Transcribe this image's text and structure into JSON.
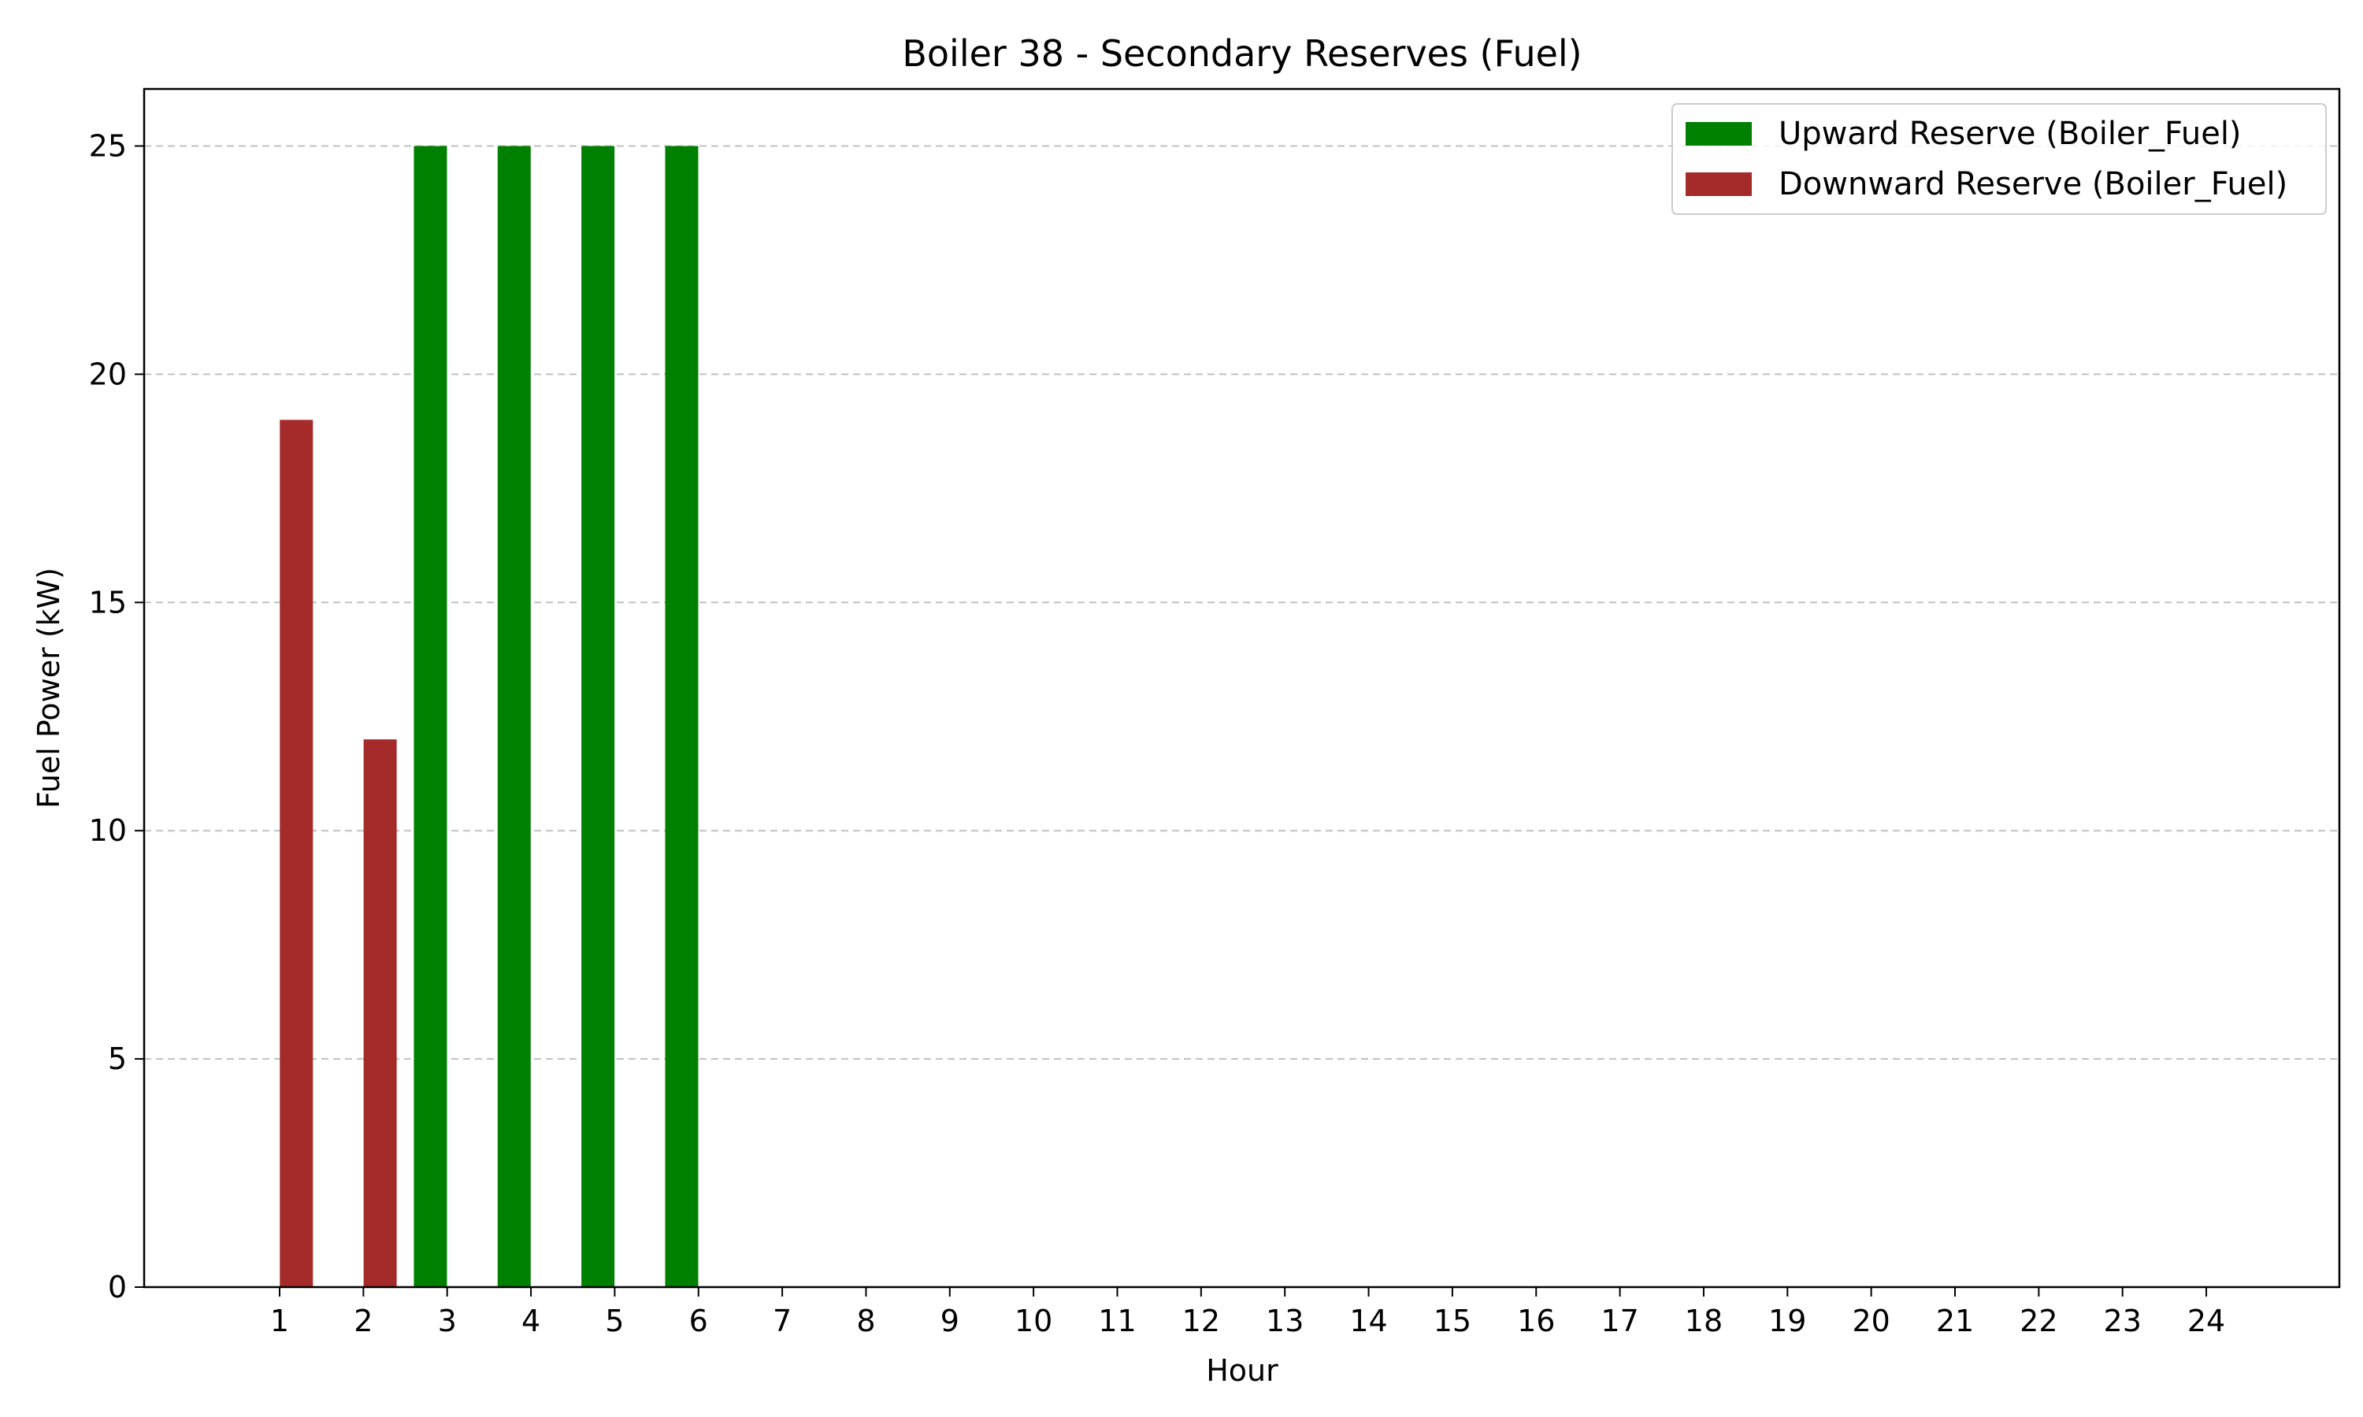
{
  "chart_data": {
    "type": "bar",
    "title": "Boiler 38 - Secondary Reserves (Fuel)",
    "xlabel": "Hour",
    "ylabel": "Fuel Power (kW)",
    "categories": [
      "1",
      "2",
      "3",
      "4",
      "5",
      "6",
      "7",
      "8",
      "9",
      "10",
      "11",
      "12",
      "13",
      "14",
      "15",
      "16",
      "17",
      "18",
      "19",
      "20",
      "21",
      "22",
      "23",
      "24"
    ],
    "ylim": [
      0,
      26.25
    ],
    "yticks": [
      0,
      5,
      10,
      15,
      20,
      25
    ],
    "grid": "horizontal dashed",
    "legend_position": "top-right",
    "series": [
      {
        "name": "Upward Reserve (Boiler_Fuel)",
        "color": "#008000",
        "offset": -0.2,
        "values": [
          0,
          0,
          25,
          25,
          25,
          25,
          0,
          0,
          0,
          0,
          0,
          0,
          0,
          0,
          0,
          0,
          0,
          0,
          0,
          0,
          0,
          0,
          0,
          0
        ]
      },
      {
        "name": "Downward Reserve (Boiler_Fuel)",
        "color": "#a52a2a",
        "offset": 0.2,
        "values": [
          19,
          12,
          0,
          0,
          0,
          0,
          0,
          0,
          0,
          0,
          0,
          0,
          0,
          0,
          0,
          0,
          0,
          0,
          0,
          0,
          0,
          0,
          0,
          0
        ]
      }
    ]
  }
}
